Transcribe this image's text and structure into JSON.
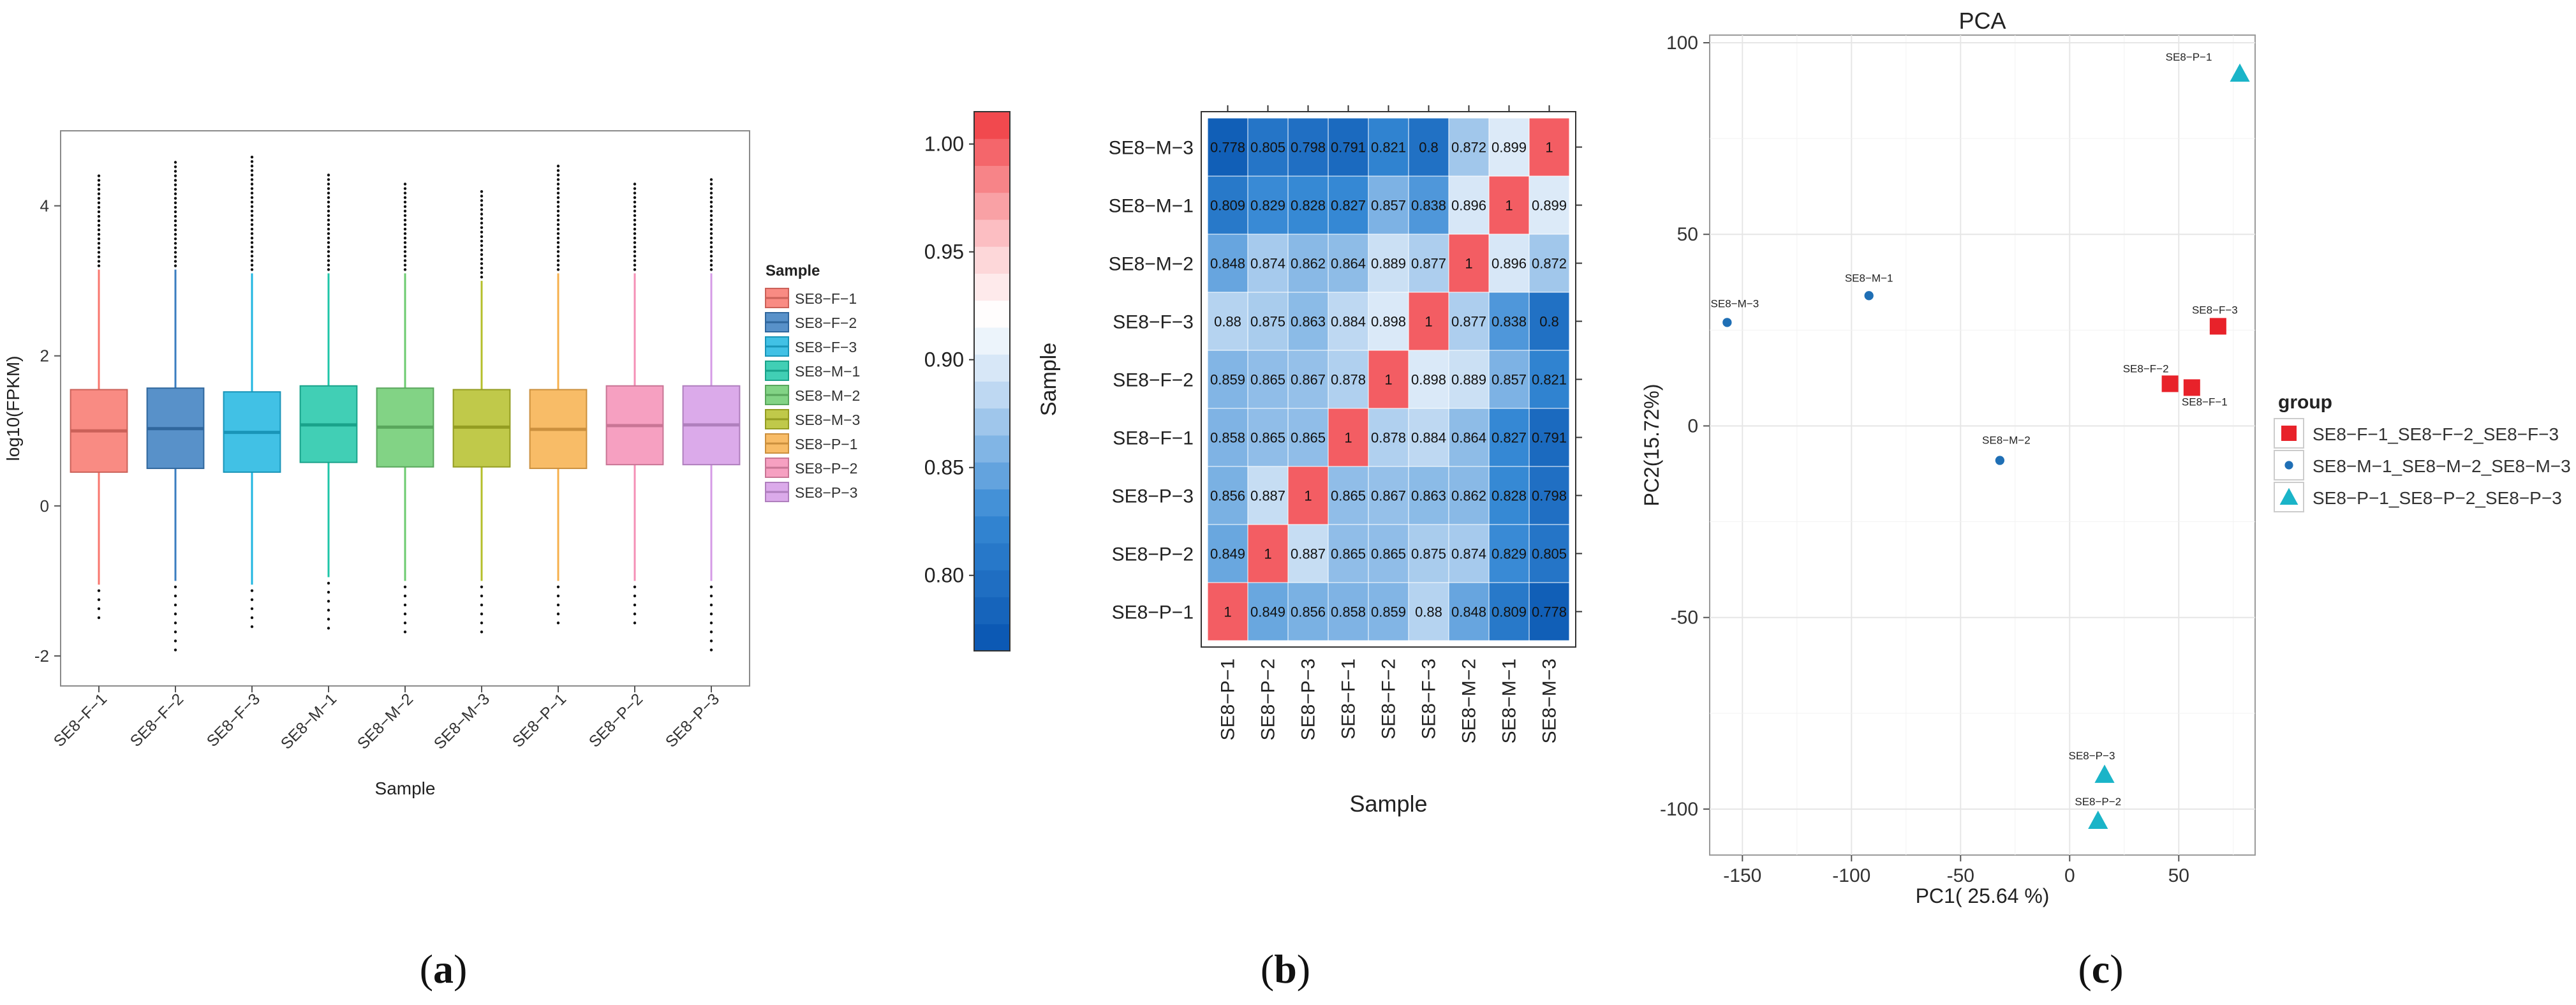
{
  "figure": {
    "panel_labels": [
      {
        "letter": "a"
      },
      {
        "letter": "b"
      },
      {
        "letter": "c"
      }
    ]
  },
  "chart_data": [
    {
      "type": "boxplot",
      "panel": "a",
      "ylabel": "log10(FPKM)",
      "xlabel": "Sample",
      "ylim": [
        -2.4,
        5.0
      ],
      "yticks": [
        -2,
        0,
        2,
        4
      ],
      "legend_title": "Sample",
      "legend_position": "right",
      "samples": [
        {
          "name": "SE8−F−1",
          "color": "#F8766D",
          "min": -1.05,
          "q1": 0.45,
          "median": 1.0,
          "q3": 1.55,
          "max": 3.15,
          "outlier_top": 4.45,
          "outlier_bottom": -1.6
        },
        {
          "name": "SE8−F−2",
          "color": "#3A7DC0",
          "min": -1.0,
          "q1": 0.5,
          "median": 1.03,
          "q3": 1.57,
          "max": 3.15,
          "outlier_top": 4.6,
          "outlier_bottom": -2.0
        },
        {
          "name": "SE8−F−3",
          "color": "#1FB6E0",
          "min": -1.05,
          "q1": 0.45,
          "median": 0.98,
          "q3": 1.52,
          "max": 3.1,
          "outlier_top": 4.65,
          "outlier_bottom": -1.7
        },
        {
          "name": "SE8−M−1",
          "color": "#1FC6A8",
          "min": -0.95,
          "q1": 0.58,
          "median": 1.08,
          "q3": 1.6,
          "max": 3.1,
          "outlier_top": 4.42,
          "outlier_bottom": -1.7
        },
        {
          "name": "SE8−M−2",
          "color": "#6CCB70",
          "min": -1.0,
          "q1": 0.52,
          "median": 1.05,
          "q3": 1.57,
          "max": 3.1,
          "outlier_top": 4.3,
          "outlier_bottom": -1.7
        },
        {
          "name": "SE8−M−3",
          "color": "#B5BF2A",
          "min": -1.0,
          "q1": 0.52,
          "median": 1.05,
          "q3": 1.55,
          "max": 3.0,
          "outlier_top": 4.2,
          "outlier_bottom": -1.8
        },
        {
          "name": "SE8−P−1",
          "color": "#F7B04C",
          "min": -1.0,
          "q1": 0.5,
          "median": 1.02,
          "q3": 1.55,
          "max": 3.1,
          "outlier_top": 4.58,
          "outlier_bottom": -1.6
        },
        {
          "name": "SE8−P−2",
          "color": "#F48FB6",
          "min": -1.0,
          "q1": 0.55,
          "median": 1.07,
          "q3": 1.6,
          "max": 3.1,
          "outlier_top": 4.3,
          "outlier_bottom": -1.6
        },
        {
          "name": "SE8−P−3",
          "color": "#D59BE6",
          "min": -1.0,
          "q1": 0.55,
          "median": 1.08,
          "q3": 1.6,
          "max": 3.1,
          "outlier_top": 4.38,
          "outlier_bottom": -2.0
        }
      ]
    },
    {
      "type": "heatmap",
      "panel": "b",
      "xlabel": "Sample",
      "ylabel": "Sample",
      "colorbar": {
        "min": 0.765,
        "max": 1.015,
        "ticks": [
          0.8,
          0.85,
          0.9,
          0.95,
          1.0
        ],
        "tick_labels": [
          "0.80",
          "0.85",
          "0.90",
          "0.95",
          "1.00"
        ]
      },
      "rows_top_to_bottom": [
        "SE8−M−3",
        "SE8−M−1",
        "SE8−M−2",
        "SE8−F−3",
        "SE8−F−2",
        "SE8−F−1",
        "SE8−P−3",
        "SE8−P−2",
        "SE8−P−1"
      ],
      "columns": [
        "SE8−P−1",
        "SE8−P−2",
        "SE8−P−3",
        "SE8−F−1",
        "SE8−F−2",
        "SE8−F−3",
        "SE8−M−2",
        "SE8−M−1",
        "SE8−M−3"
      ],
      "values": [
        [
          "0.778",
          "0.805",
          "0.798",
          "0.791",
          "0.821",
          "0.8",
          "0.872",
          "0.899",
          "1"
        ],
        [
          "0.809",
          "0.829",
          "0.828",
          "0.827",
          "0.857",
          "0.838",
          "0.896",
          "1",
          "0.899"
        ],
        [
          "0.848",
          "0.874",
          "0.862",
          "0.864",
          "0.889",
          "0.877",
          "1",
          "0.896",
          "0.872"
        ],
        [
          "0.88",
          "0.875",
          "0.863",
          "0.884",
          "0.898",
          "1",
          "0.877",
          "0.838",
          "0.8"
        ],
        [
          "0.859",
          "0.865",
          "0.867",
          "0.878",
          "1",
          "0.898",
          "0.889",
          "0.857",
          "0.821"
        ],
        [
          "0.858",
          "0.865",
          "0.865",
          "1",
          "0.878",
          "0.884",
          "0.864",
          "0.827",
          "0.791"
        ],
        [
          "0.856",
          "0.887",
          "1",
          "0.865",
          "0.867",
          "0.863",
          "0.862",
          "0.828",
          "0.798"
        ],
        [
          "0.849",
          "1",
          "0.887",
          "0.865",
          "0.865",
          "0.875",
          "0.874",
          "0.829",
          "0.805"
        ],
        [
          "1",
          "0.849",
          "0.856",
          "0.858",
          "0.859",
          "0.88",
          "0.848",
          "0.809",
          "0.778"
        ]
      ]
    },
    {
      "type": "scatter",
      "panel": "c",
      "title": "PCA",
      "xlabel": "PC1( 25.64 %)",
      "ylabel": "PC2(15.72%)",
      "xlim": [
        -165,
        85
      ],
      "ylim": [
        -112,
        102
      ],
      "xticks": [
        -150,
        -100,
        -50,
        0,
        50
      ],
      "yticks": [
        -100,
        -50,
        0,
        50,
        100
      ],
      "legend_title": "group",
      "legend_position": "right",
      "series": [
        {
          "name": "SE8−F−1_SE8−F−2_SE8−F−3",
          "shape": "square",
          "color": "#E8222A",
          "points": [
            {
              "label": "SE8−F−1",
              "x": 56,
              "y": 10
            },
            {
              "label": "SE8−F−2",
              "x": 46,
              "y": 11
            },
            {
              "label": "SE8−F−3",
              "x": 68,
              "y": 26
            }
          ]
        },
        {
          "name": "SE8−M−1_SE8−M−2_SE8−M−3",
          "shape": "circle",
          "color": "#1F6FB5",
          "points": [
            {
              "label": "SE8−M−1",
              "x": -92,
              "y": 34
            },
            {
              "label": "SE8−M−2",
              "x": -32,
              "y": -9
            },
            {
              "label": "SE8−M−3",
              "x": -157,
              "y": 27
            }
          ]
        },
        {
          "name": "SE8−P−1_SE8−P−2_SE8−P−3",
          "shape": "triangle",
          "color": "#1AB4C8",
          "points": [
            {
              "label": "SE8−P−1",
              "x": 78,
              "y": 92
            },
            {
              "label": "SE8−P−2",
              "x": 13,
              "y": -103
            },
            {
              "label": "SE8−P−3",
              "x": 16,
              "y": -91
            }
          ]
        }
      ]
    }
  ]
}
